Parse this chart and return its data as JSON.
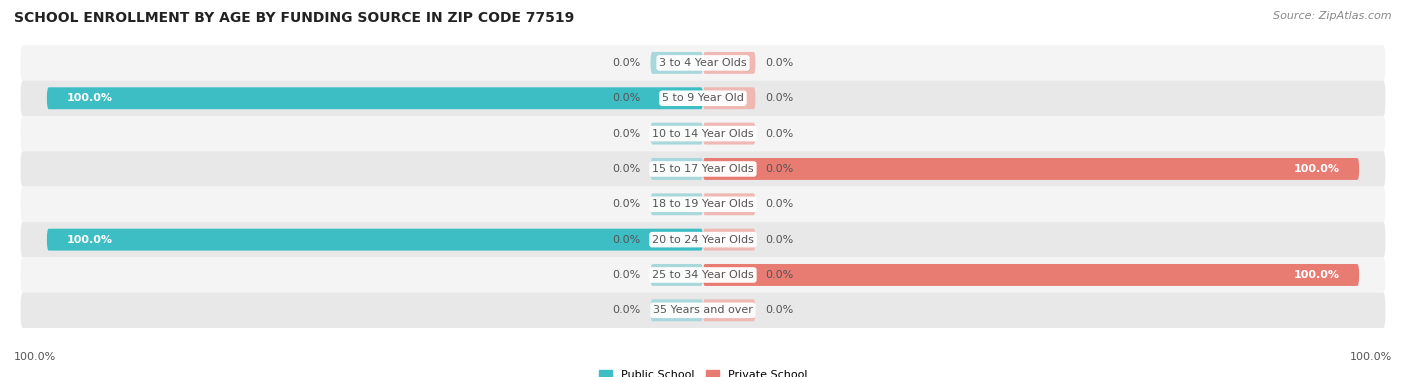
{
  "title": "SCHOOL ENROLLMENT BY AGE BY FUNDING SOURCE IN ZIP CODE 77519",
  "source": "Source: ZipAtlas.com",
  "categories": [
    "3 to 4 Year Olds",
    "5 to 9 Year Old",
    "10 to 14 Year Olds",
    "15 to 17 Year Olds",
    "18 to 19 Year Olds",
    "20 to 24 Year Olds",
    "25 to 34 Year Olds",
    "35 Years and over"
  ],
  "public_values": [
    0.0,
    100.0,
    0.0,
    0.0,
    0.0,
    100.0,
    0.0,
    0.0
  ],
  "private_values": [
    0.0,
    0.0,
    0.0,
    100.0,
    0.0,
    0.0,
    100.0,
    0.0
  ],
  "public_color": "#3dbdc4",
  "private_color": "#e87b72",
  "public_color_light": "#a8d8db",
  "private_color_light": "#f0b8b2",
  "row_bg_color_light": "#f4f4f4",
  "row_bg_color_dark": "#e8e8e8",
  "label_color_dark": "#555555",
  "label_color_white": "#ffffff",
  "title_fontsize": 10,
  "source_fontsize": 8,
  "axis_label_fontsize": 8,
  "bar_label_fontsize": 8,
  "category_fontsize": 8,
  "legend_fontsize": 8,
  "xlim": 100,
  "stub_size": 8
}
